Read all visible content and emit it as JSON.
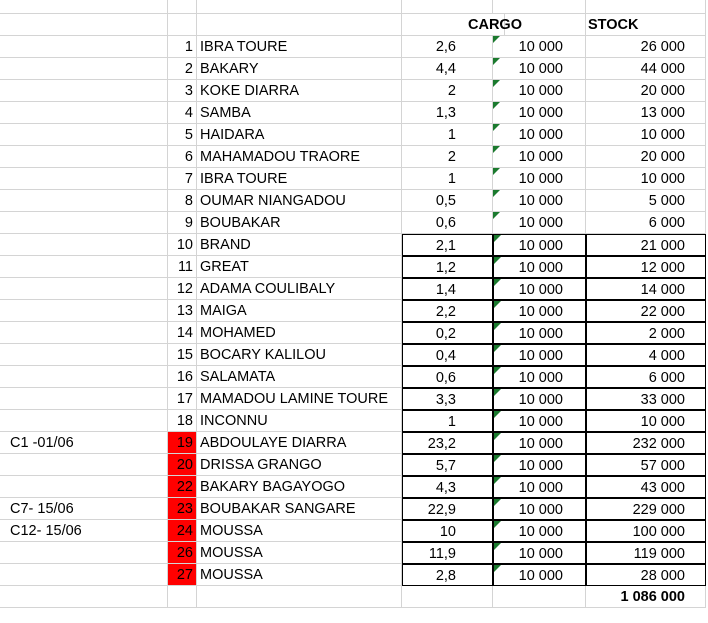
{
  "headers": {
    "cargo": "CARGO",
    "stock": "STOCK"
  },
  "rows": [
    {
      "num": "1",
      "name": "IBRA TOURE",
      "qty": "2,6",
      "cargo": "10 000",
      "stock": "26 000",
      "label": "",
      "red": false,
      "boxed": false
    },
    {
      "num": "2",
      "name": "BAKARY",
      "qty": "4,4",
      "cargo": "10 000",
      "stock": "44 000",
      "label": "",
      "red": false,
      "boxed": false
    },
    {
      "num": "3",
      "name": "KOKE DIARRA",
      "qty": "2",
      "cargo": "10 000",
      "stock": "20 000",
      "label": "",
      "red": false,
      "boxed": false
    },
    {
      "num": "4",
      "name": "SAMBA",
      "qty": "1,3",
      "cargo": "10 000",
      "stock": "13 000",
      "label": "",
      "red": false,
      "boxed": false
    },
    {
      "num": "5",
      "name": "HAIDARA",
      "qty": "1",
      "cargo": "10 000",
      "stock": "10 000",
      "label": "",
      "red": false,
      "boxed": false
    },
    {
      "num": "6",
      "name": "MAHAMADOU TRAORE",
      "qty": "2",
      "cargo": "10 000",
      "stock": "20 000",
      "label": "",
      "red": false,
      "boxed": false
    },
    {
      "num": "7",
      "name": "IBRA TOURE",
      "qty": "1",
      "cargo": "10 000",
      "stock": "10 000",
      "label": "",
      "red": false,
      "boxed": false
    },
    {
      "num": "8",
      "name": "OUMAR NIANGADOU",
      "qty": "0,5",
      "cargo": "10 000",
      "stock": "5 000",
      "label": "",
      "red": false,
      "boxed": false
    },
    {
      "num": "9",
      "name": "BOUBAKAR",
      "qty": "0,6",
      "cargo": "10 000",
      "stock": "6 000",
      "label": "",
      "red": false,
      "boxed": false
    },
    {
      "num": "10",
      "name": "BRAND",
      "qty": "2,1",
      "cargo": "10 000",
      "stock": "21 000",
      "label": "",
      "red": false,
      "boxed": true
    },
    {
      "num": "11",
      "name": "GREAT",
      "qty": "1,2",
      "cargo": "10 000",
      "stock": "12 000",
      "label": "",
      "red": false,
      "boxed": true
    },
    {
      "num": "12",
      "name": "ADAMA COULIBALY",
      "qty": "1,4",
      "cargo": "10 000",
      "stock": "14 000",
      "label": "",
      "red": false,
      "boxed": true
    },
    {
      "num": "13",
      "name": "MAIGA",
      "qty": "2,2",
      "cargo": "10 000",
      "stock": "22 000",
      "label": "",
      "red": false,
      "boxed": true
    },
    {
      "num": "14",
      "name": "MOHAMED",
      "qty": "0,2",
      "cargo": "10 000",
      "stock": "2 000",
      "label": "",
      "red": false,
      "boxed": true
    },
    {
      "num": "15",
      "name": "BOCARY KALILOU",
      "qty": "0,4",
      "cargo": "10 000",
      "stock": "4 000",
      "label": "",
      "red": false,
      "boxed": true
    },
    {
      "num": "16",
      "name": "SALAMATA",
      "qty": "0,6",
      "cargo": "10 000",
      "stock": "6 000",
      "label": "",
      "red": false,
      "boxed": true
    },
    {
      "num": "17",
      "name": "MAMADOU LAMINE TOURE",
      "qty": "3,3",
      "cargo": "10 000",
      "stock": "33 000",
      "label": "",
      "red": false,
      "boxed": true
    },
    {
      "num": "18",
      "name": "INCONNU",
      "qty": "1",
      "cargo": "10 000",
      "stock": "10 000",
      "label": "",
      "red": false,
      "boxed": true
    },
    {
      "num": "19",
      "name": "ABDOULAYE DIARRA",
      "qty": "23,2",
      "cargo": "10 000",
      "stock": "232 000",
      "label": "C1 -01/06",
      "red": true,
      "boxed": true
    },
    {
      "num": "20",
      "name": "DRISSA  GRANGO",
      "qty": "5,7",
      "cargo": "10 000",
      "stock": "57 000",
      "label": "",
      "red": true,
      "boxed": true
    },
    {
      "num": "22",
      "name": "BAKARY BAGAYOGO",
      "qty": "4,3",
      "cargo": "10 000",
      "stock": "43 000",
      "label": "",
      "red": true,
      "boxed": true
    },
    {
      "num": "23",
      "name": "BOUBAKAR SANGARE",
      "qty": "22,9",
      "cargo": "10 000",
      "stock": "229 000",
      "label": "C7- 15/06",
      "red": true,
      "boxed": true
    },
    {
      "num": "24",
      "name": "MOUSSA",
      "qty": "10",
      "cargo": "10 000",
      "stock": "100 000",
      "label": "C12- 15/06",
      "red": true,
      "boxed": true
    },
    {
      "num": "26",
      "name": "MOUSSA",
      "qty": "11,9",
      "cargo": "10 000",
      "stock": "119 000",
      "label": "",
      "red": true,
      "boxed": true
    },
    {
      "num": "27",
      "name": "MOUSSA",
      "qty": "2,8",
      "cargo": "10 000",
      "stock": "28 000",
      "label": "",
      "red": true,
      "boxed": true
    }
  ],
  "total": "1 086 000",
  "colors": {
    "highlight": "#ff0000",
    "gridline": "#d4d4d4",
    "flag": "#1b7a2e"
  }
}
